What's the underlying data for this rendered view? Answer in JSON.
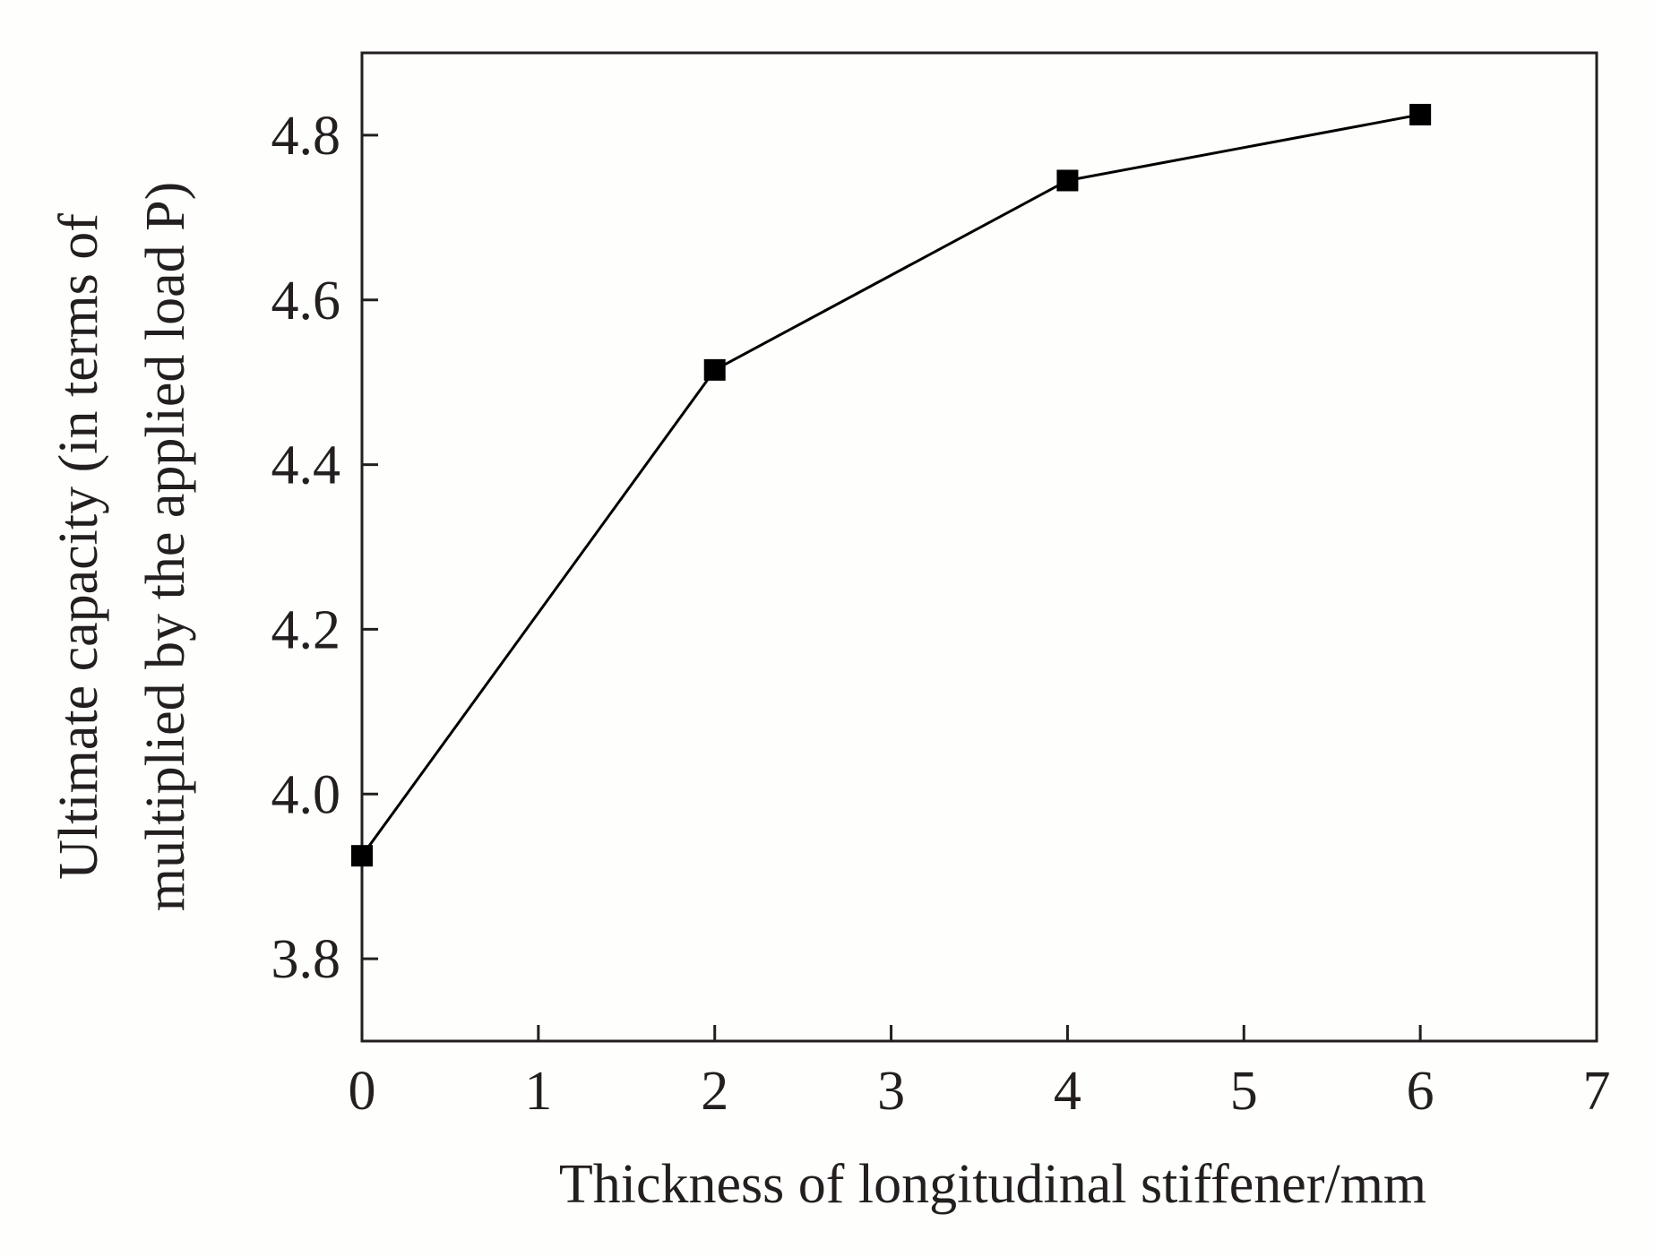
{
  "chart_data": {
    "type": "line",
    "title": "",
    "xlabel": "Thickness of longitudinal stiffener/mm",
    "ylabel_line1": "Ultimate capacity (in terms of",
    "ylabel_line2": "multiplied by the applied load P)",
    "xlim": [
      0,
      7
    ],
    "ylim": [
      3.7,
      4.9
    ],
    "xticks": [
      0,
      1,
      2,
      3,
      4,
      5,
      6,
      7
    ],
    "xtick_labels": [
      "0",
      "1",
      "2",
      "3",
      "4",
      "5",
      "6",
      "7"
    ],
    "yticks": [
      3.8,
      4.0,
      4.2,
      4.4,
      4.6,
      4.8
    ],
    "ytick_labels": [
      "3.8",
      "4.0",
      "4.2",
      "4.4",
      "4.6",
      "4.8"
    ],
    "grid": false,
    "series": [
      {
        "name": "Ultimate capacity",
        "marker": "square",
        "color": "#000000",
        "x": [
          0,
          2,
          4,
          6
        ],
        "y": [
          3.925,
          4.515,
          4.745,
          4.825
        ]
      }
    ]
  }
}
